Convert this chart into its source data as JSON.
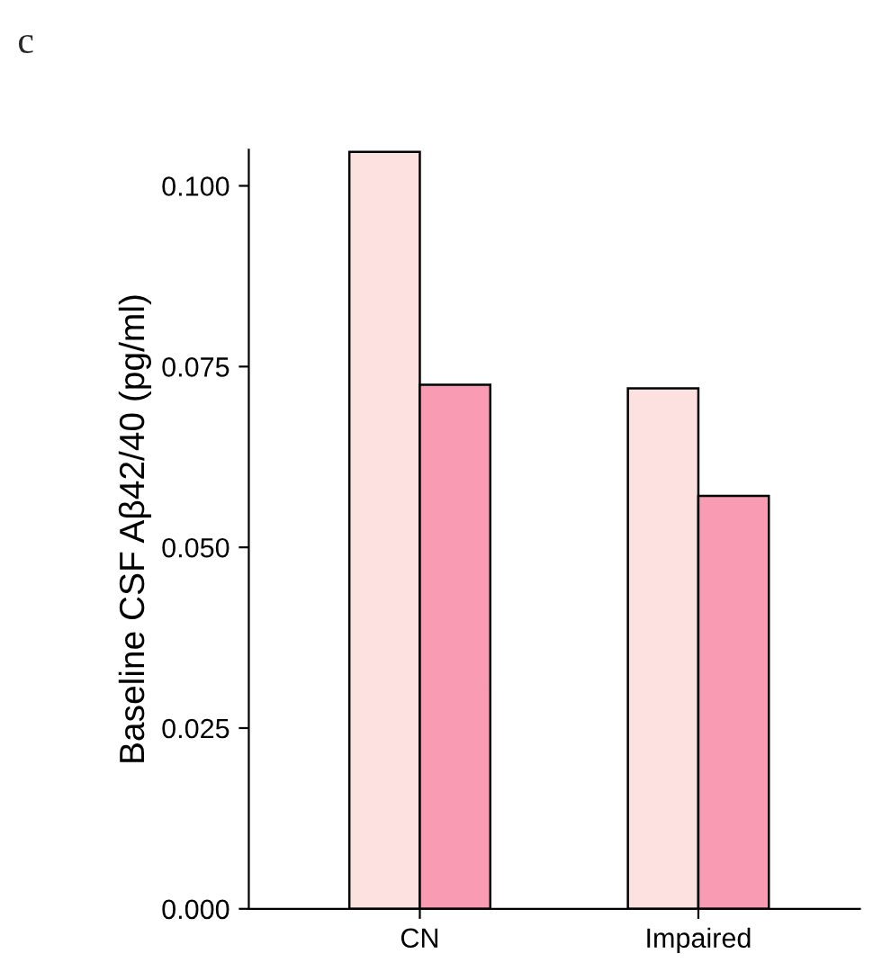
{
  "chart_data": {
    "type": "bar",
    "annotations": [
      "c"
    ],
    "ylabel": "Baseline CSF Aβ42/40 (pg/ml)",
    "categories": [
      "CN",
      "Impaired"
    ],
    "series": [
      {
        "color": "#fde0e0",
        "values": [
          0.1047,
          0.072
        ]
      },
      {
        "color": "#f99bb3",
        "values": [
          0.0725,
          0.0571
        ]
      }
    ],
    "ylim": [
      0,
      0.105
    ],
    "yticks": [
      {
        "value": 0,
        "label": "0.000"
      },
      {
        "value": 0.025,
        "label": "0.025"
      },
      {
        "value": 0.05,
        "label": "0.050"
      },
      {
        "value": 0.075,
        "label": "0.075"
      },
      {
        "value": 0.1,
        "label": "0.100"
      }
    ],
    "grid": false,
    "legend": false
  }
}
